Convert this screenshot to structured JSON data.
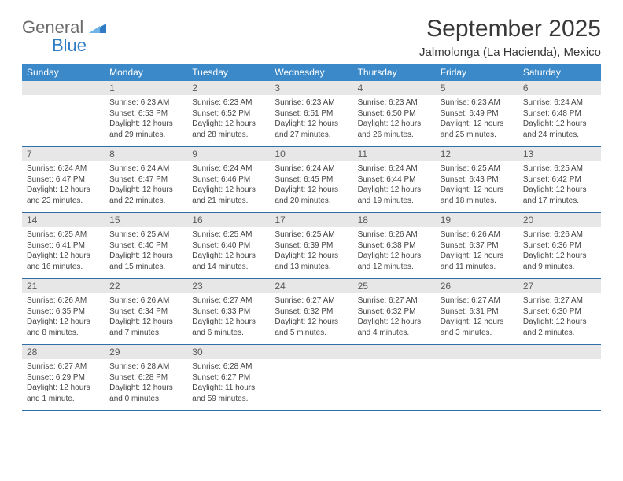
{
  "brand": {
    "name1": "General",
    "name2": "Blue"
  },
  "header": {
    "month_title": "September 2025",
    "location": "Jalmolonga (La Hacienda), Mexico"
  },
  "colors": {
    "header_bg": "#3b89c9",
    "header_text": "#ffffff",
    "daybar_bg": "#e7e7e7",
    "row_border": "#2f6fa8",
    "logo_gray": "#6a6a6a",
    "logo_blue": "#2f7bc4"
  },
  "weekdays": [
    "Sunday",
    "Monday",
    "Tuesday",
    "Wednesday",
    "Thursday",
    "Friday",
    "Saturday"
  ],
  "weeks": [
    [
      {
        "n": "",
        "sunrise": "",
        "sunset": "",
        "daylight": ""
      },
      {
        "n": "1",
        "sunrise": "Sunrise: 6:23 AM",
        "sunset": "Sunset: 6:53 PM",
        "daylight": "Daylight: 12 hours and 29 minutes."
      },
      {
        "n": "2",
        "sunrise": "Sunrise: 6:23 AM",
        "sunset": "Sunset: 6:52 PM",
        "daylight": "Daylight: 12 hours and 28 minutes."
      },
      {
        "n": "3",
        "sunrise": "Sunrise: 6:23 AM",
        "sunset": "Sunset: 6:51 PM",
        "daylight": "Daylight: 12 hours and 27 minutes."
      },
      {
        "n": "4",
        "sunrise": "Sunrise: 6:23 AM",
        "sunset": "Sunset: 6:50 PM",
        "daylight": "Daylight: 12 hours and 26 minutes."
      },
      {
        "n": "5",
        "sunrise": "Sunrise: 6:23 AM",
        "sunset": "Sunset: 6:49 PM",
        "daylight": "Daylight: 12 hours and 25 minutes."
      },
      {
        "n": "6",
        "sunrise": "Sunrise: 6:24 AM",
        "sunset": "Sunset: 6:48 PM",
        "daylight": "Daylight: 12 hours and 24 minutes."
      }
    ],
    [
      {
        "n": "7",
        "sunrise": "Sunrise: 6:24 AM",
        "sunset": "Sunset: 6:47 PM",
        "daylight": "Daylight: 12 hours and 23 minutes."
      },
      {
        "n": "8",
        "sunrise": "Sunrise: 6:24 AM",
        "sunset": "Sunset: 6:47 PM",
        "daylight": "Daylight: 12 hours and 22 minutes."
      },
      {
        "n": "9",
        "sunrise": "Sunrise: 6:24 AM",
        "sunset": "Sunset: 6:46 PM",
        "daylight": "Daylight: 12 hours and 21 minutes."
      },
      {
        "n": "10",
        "sunrise": "Sunrise: 6:24 AM",
        "sunset": "Sunset: 6:45 PM",
        "daylight": "Daylight: 12 hours and 20 minutes."
      },
      {
        "n": "11",
        "sunrise": "Sunrise: 6:24 AM",
        "sunset": "Sunset: 6:44 PM",
        "daylight": "Daylight: 12 hours and 19 minutes."
      },
      {
        "n": "12",
        "sunrise": "Sunrise: 6:25 AM",
        "sunset": "Sunset: 6:43 PM",
        "daylight": "Daylight: 12 hours and 18 minutes."
      },
      {
        "n": "13",
        "sunrise": "Sunrise: 6:25 AM",
        "sunset": "Sunset: 6:42 PM",
        "daylight": "Daylight: 12 hours and 17 minutes."
      }
    ],
    [
      {
        "n": "14",
        "sunrise": "Sunrise: 6:25 AM",
        "sunset": "Sunset: 6:41 PM",
        "daylight": "Daylight: 12 hours and 16 minutes."
      },
      {
        "n": "15",
        "sunrise": "Sunrise: 6:25 AM",
        "sunset": "Sunset: 6:40 PM",
        "daylight": "Daylight: 12 hours and 15 minutes."
      },
      {
        "n": "16",
        "sunrise": "Sunrise: 6:25 AM",
        "sunset": "Sunset: 6:40 PM",
        "daylight": "Daylight: 12 hours and 14 minutes."
      },
      {
        "n": "17",
        "sunrise": "Sunrise: 6:25 AM",
        "sunset": "Sunset: 6:39 PM",
        "daylight": "Daylight: 12 hours and 13 minutes."
      },
      {
        "n": "18",
        "sunrise": "Sunrise: 6:26 AM",
        "sunset": "Sunset: 6:38 PM",
        "daylight": "Daylight: 12 hours and 12 minutes."
      },
      {
        "n": "19",
        "sunrise": "Sunrise: 6:26 AM",
        "sunset": "Sunset: 6:37 PM",
        "daylight": "Daylight: 12 hours and 11 minutes."
      },
      {
        "n": "20",
        "sunrise": "Sunrise: 6:26 AM",
        "sunset": "Sunset: 6:36 PM",
        "daylight": "Daylight: 12 hours and 9 minutes."
      }
    ],
    [
      {
        "n": "21",
        "sunrise": "Sunrise: 6:26 AM",
        "sunset": "Sunset: 6:35 PM",
        "daylight": "Daylight: 12 hours and 8 minutes."
      },
      {
        "n": "22",
        "sunrise": "Sunrise: 6:26 AM",
        "sunset": "Sunset: 6:34 PM",
        "daylight": "Daylight: 12 hours and 7 minutes."
      },
      {
        "n": "23",
        "sunrise": "Sunrise: 6:27 AM",
        "sunset": "Sunset: 6:33 PM",
        "daylight": "Daylight: 12 hours and 6 minutes."
      },
      {
        "n": "24",
        "sunrise": "Sunrise: 6:27 AM",
        "sunset": "Sunset: 6:32 PM",
        "daylight": "Daylight: 12 hours and 5 minutes."
      },
      {
        "n": "25",
        "sunrise": "Sunrise: 6:27 AM",
        "sunset": "Sunset: 6:32 PM",
        "daylight": "Daylight: 12 hours and 4 minutes."
      },
      {
        "n": "26",
        "sunrise": "Sunrise: 6:27 AM",
        "sunset": "Sunset: 6:31 PM",
        "daylight": "Daylight: 12 hours and 3 minutes."
      },
      {
        "n": "27",
        "sunrise": "Sunrise: 6:27 AM",
        "sunset": "Sunset: 6:30 PM",
        "daylight": "Daylight: 12 hours and 2 minutes."
      }
    ],
    [
      {
        "n": "28",
        "sunrise": "Sunrise: 6:27 AM",
        "sunset": "Sunset: 6:29 PM",
        "daylight": "Daylight: 12 hours and 1 minute."
      },
      {
        "n": "29",
        "sunrise": "Sunrise: 6:28 AM",
        "sunset": "Sunset: 6:28 PM",
        "daylight": "Daylight: 12 hours and 0 minutes."
      },
      {
        "n": "30",
        "sunrise": "Sunrise: 6:28 AM",
        "sunset": "Sunset: 6:27 PM",
        "daylight": "Daylight: 11 hours and 59 minutes."
      },
      {
        "n": "",
        "sunrise": "",
        "sunset": "",
        "daylight": ""
      },
      {
        "n": "",
        "sunrise": "",
        "sunset": "",
        "daylight": ""
      },
      {
        "n": "",
        "sunrise": "",
        "sunset": "",
        "daylight": ""
      },
      {
        "n": "",
        "sunrise": "",
        "sunset": "",
        "daylight": ""
      }
    ]
  ]
}
